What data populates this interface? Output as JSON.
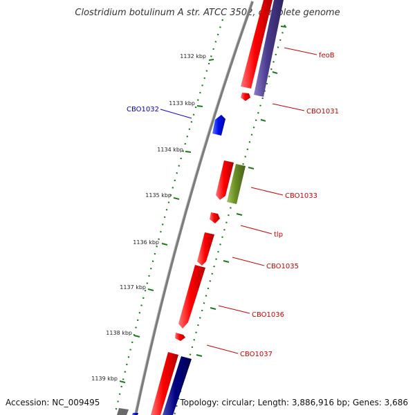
{
  "title": "Clostridium botulinum A str. ATCC 3502, complete genome",
  "footer": {
    "accession": "Accession: NC_009495",
    "summary": "Topology: circular; Length: 3,886,916 bp; Genes: 3,686"
  },
  "ticks": [
    "1132 kbp",
    "1133 kbp",
    "1134 kbp",
    "1135 kbp",
    "1136 kbp",
    "1137 kbp",
    "1138 kbp",
    "1139 kbp"
  ],
  "genes": [
    {
      "label": "feoB",
      "color": "#cc0000"
    },
    {
      "label": "CBO1031",
      "color": "#cc0000"
    },
    {
      "label": "CBO1032",
      "color": "#0000cc"
    },
    {
      "label": "CBO1033",
      "color": "#cc0000"
    },
    {
      "label": "tlp",
      "color": "#cc0000"
    },
    {
      "label": "CBO1035",
      "color": "#cc0000"
    },
    {
      "label": "CBO1036",
      "color": "#cc0000"
    },
    {
      "label": "CBO1037",
      "color": "#cc0000"
    }
  ],
  "colors": {
    "cds": "#ee0000",
    "reverse_cds": "#0000ee",
    "feature_purple": "#4a3a8c",
    "feature_olive": "#6b8e23",
    "feature_navy": "#000080",
    "backbone": "#8a8a8a",
    "ticks": "#1a7a1a"
  }
}
